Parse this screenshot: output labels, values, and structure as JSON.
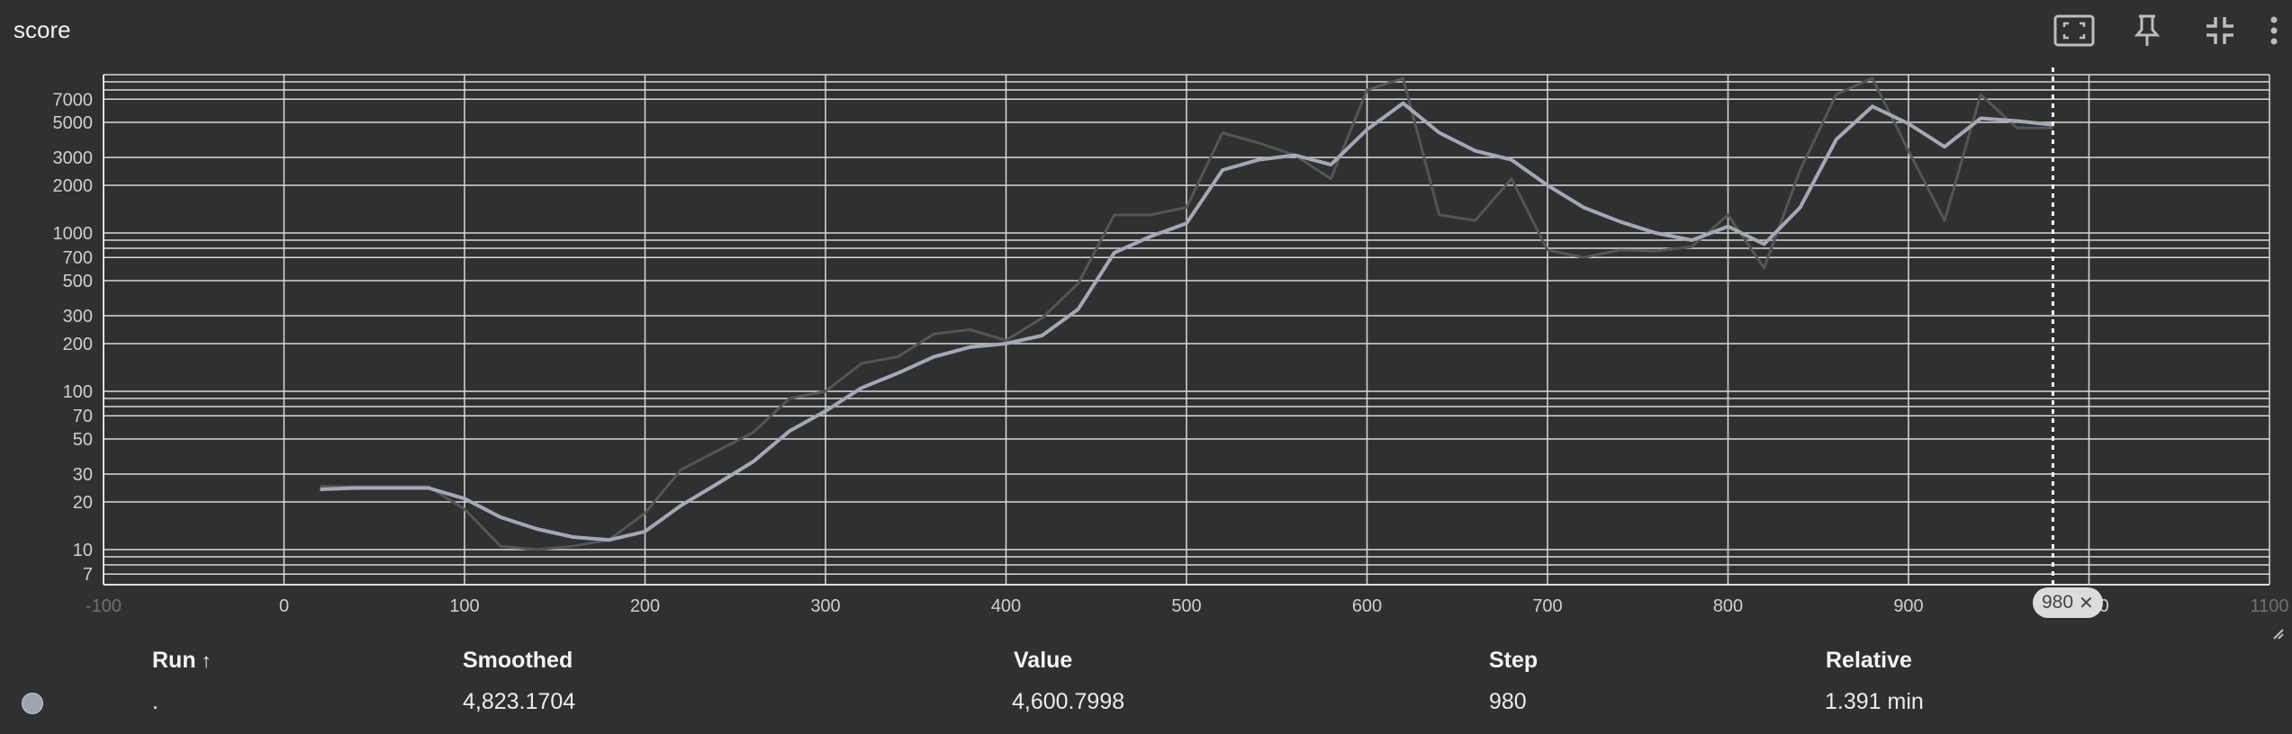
{
  "card": {
    "title": "score"
  },
  "toolbar": {
    "icons": [
      "fit-domain-icon",
      "pin-icon",
      "collapse-icon",
      "more-vert-icon"
    ]
  },
  "chart_data": {
    "type": "line",
    "title": "score",
    "xlabel": "",
    "ylabel": "",
    "xlim": [
      -100,
      1100
    ],
    "ylim": [
      6,
      10000
    ],
    "yscale": "log",
    "grid": true,
    "x_ticks": [
      "-100",
      "0",
      "100",
      "200",
      "300",
      "400",
      "500",
      "600",
      "700",
      "800",
      "900",
      "1000",
      "1100"
    ],
    "y_ticks": [
      "7",
      "10",
      "20",
      "30",
      "50",
      "70",
      "100",
      "200",
      "300",
      "500",
      "700",
      "1000",
      "2000",
      "3000",
      "5000",
      "7000"
    ],
    "y_minor_grid": [
      8,
      9,
      80,
      90,
      800,
      900,
      8000,
      9000
    ],
    "series": [
      {
        "role": "raw",
        "color": "#555555",
        "x": [
          20,
          40,
          60,
          80,
          100,
          120,
          140,
          160,
          180,
          200,
          220,
          240,
          260,
          280,
          300,
          320,
          340,
          360,
          380,
          400,
          420,
          440,
          460,
          480,
          500,
          520,
          540,
          560,
          580,
          600,
          620,
          640,
          660,
          680,
          700,
          720,
          740,
          760,
          780,
          800,
          820,
          840,
          860,
          880,
          900,
          920,
          940,
          960,
          980
        ],
        "y": [
          25,
          25,
          25,
          25,
          18,
          10.5,
          10,
          10.5,
          11.5,
          17,
          32,
          42,
          55,
          90,
          100,
          150,
          165,
          230,
          245,
          210,
          290,
          480,
          1300,
          1300,
          1450,
          4300,
          3700,
          3100,
          2200,
          8000,
          9500,
          1300,
          1200,
          2200,
          780,
          700,
          780,
          770,
          820,
          1300,
          600,
          2500,
          7500,
          9500,
          3300,
          1200,
          7500,
          4600,
          4600
        ]
      },
      {
        "role": "smoothed",
        "color": "#a4a8b6",
        "x": [
          20,
          40,
          60,
          80,
          100,
          120,
          140,
          160,
          180,
          200,
          220,
          240,
          260,
          280,
          300,
          320,
          340,
          360,
          380,
          400,
          420,
          440,
          460,
          480,
          500,
          520,
          540,
          560,
          580,
          600,
          620,
          640,
          660,
          680,
          700,
          720,
          740,
          760,
          780,
          800,
          820,
          840,
          860,
          880,
          900,
          920,
          940,
          960,
          980
        ],
        "y": [
          24,
          24.5,
          24.5,
          24.5,
          21,
          16,
          13.5,
          12,
          11.5,
          13,
          19,
          26,
          36,
          56,
          75,
          105,
          130,
          165,
          190,
          200,
          225,
          330,
          750,
          950,
          1150,
          2500,
          2900,
          3100,
          2700,
          4500,
          6600,
          4300,
          3300,
          2900,
          2000,
          1450,
          1180,
          1000,
          900,
          1100,
          850,
          1450,
          3900,
          6300,
          4900,
          3500,
          5300,
          5100,
          4823
        ]
      }
    ],
    "hover_step": "980"
  },
  "table": {
    "headers": {
      "run": "Run",
      "smoothed": "Smoothed",
      "value": "Value",
      "step": "Step",
      "relative": "Relative"
    },
    "rows": [
      {
        "run": ".",
        "smoothed": "4,823.1704",
        "value": "4,600.7998",
        "step": "980",
        "relative": "1.391 min",
        "color": "#9ea4b2"
      }
    ]
  }
}
